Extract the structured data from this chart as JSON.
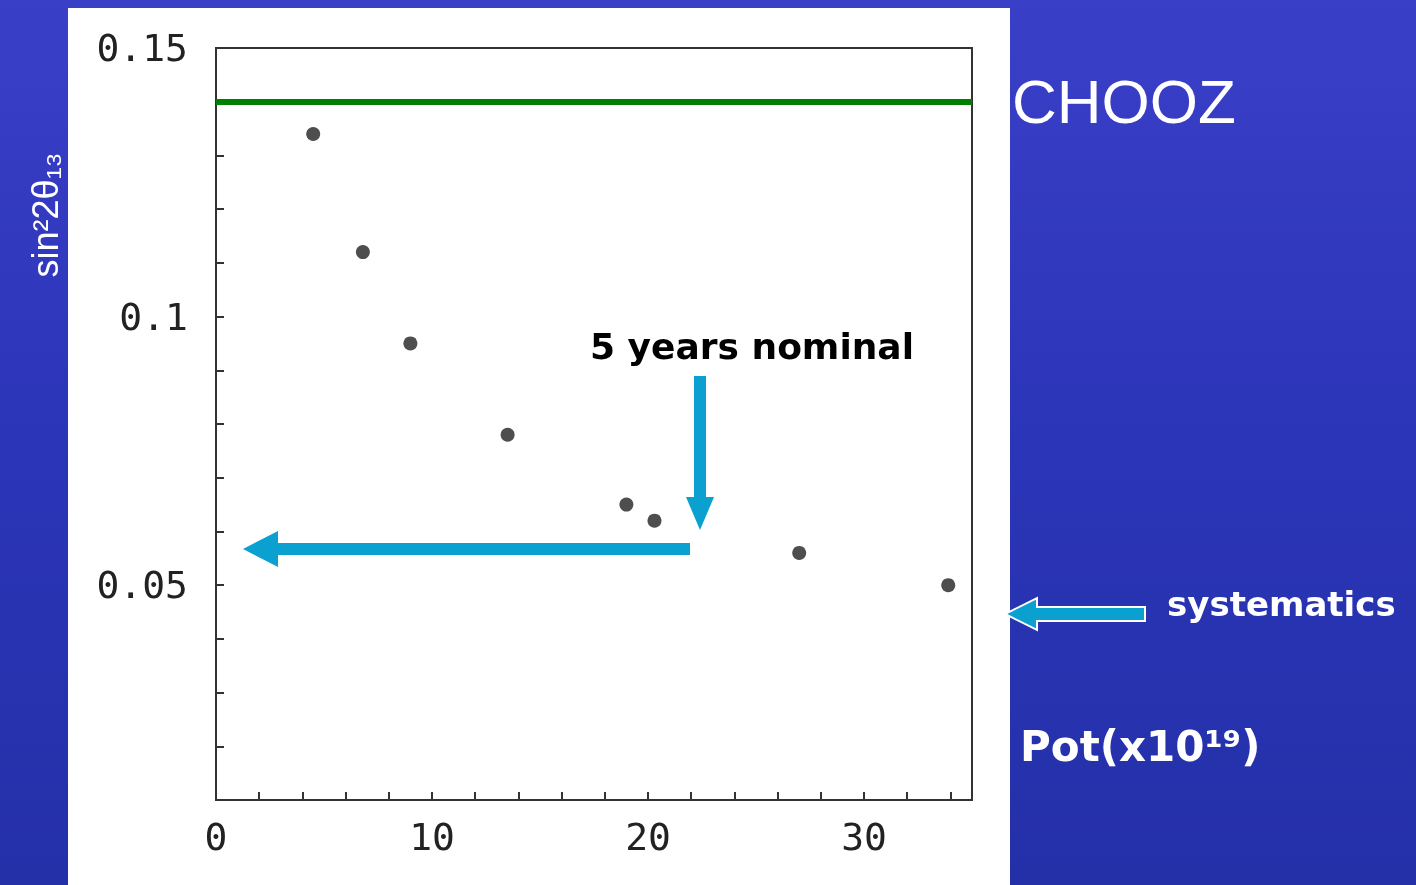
{
  "chart_data": {
    "type": "scatter",
    "xlabel": "Pot(x10¹⁹)",
    "ylabel": "sin²2θ₁₃",
    "x": [
      4.5,
      6.8,
      9.0,
      13.5,
      19.0,
      20.3,
      27.0,
      33.9
    ],
    "values": [
      0.134,
      0.112,
      0.095,
      0.078,
      0.065,
      0.062,
      0.056,
      0.05
    ],
    "color": "#222222",
    "marker": "circle",
    "xlim": [
      0,
      35
    ],
    "xticks": [
      0,
      {
        "value": 2,
        "label": null
      },
      {
        "value": 4,
        "label": null
      },
      {
        "value": 6,
        "label": null
      },
      {
        "value": 8,
        "label": null
      },
      10,
      {
        "value": 12,
        "label": null
      },
      {
        "value": 14,
        "label": null
      },
      {
        "value": 16,
        "label": null
      },
      {
        "value": 18,
        "label": null
      },
      20,
      {
        "value": 22,
        "label": null
      },
      {
        "value": 24,
        "label": null
      },
      {
        "value": 26,
        "label": null
      },
      {
        "value": 28,
        "label": null
      },
      30,
      {
        "value": 32,
        "label": null
      },
      {
        "value": 34,
        "label": null
      }
    ],
    "ylim": [
      0.01,
      0.15
    ],
    "yticks": [
      {
        "value": 0.02,
        "label": null
      },
      {
        "value": 0.03,
        "label": null
      },
      {
        "value": 0.04,
        "label": null
      },
      {
        "value": 0.05,
        "label": "0.05"
      },
      {
        "value": 0.06,
        "label": null
      },
      {
        "value": 0.07,
        "label": null
      },
      {
        "value": 0.08,
        "label": null
      },
      {
        "value": 0.09,
        "label": null
      },
      {
        "value": 0.1,
        "label": "0.1"
      },
      {
        "value": 0.11,
        "label": null
      },
      {
        "value": 0.12,
        "label": null
      },
      {
        "value": 0.13,
        "label": null
      },
      {
        "value": 0.14,
        "label": null
      },
      {
        "value": 0.15,
        "label": "0.15"
      }
    ],
    "ref_lines": [
      {
        "axis": "y",
        "value": 0.14,
        "label": "CHOOZ",
        "color": "#008000"
      }
    ],
    "annotations": [
      "5 years nominal",
      "systematics"
    ]
  }
}
